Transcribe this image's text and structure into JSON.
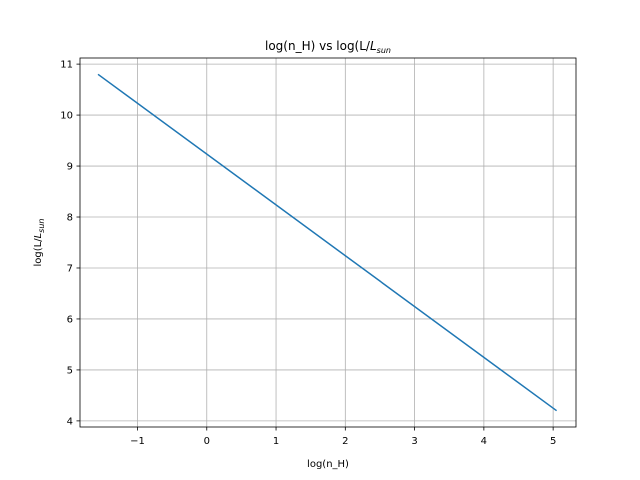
{
  "chart_data": {
    "type": "line",
    "title_main": "log(n_H) vs log(L/",
    "title_italic": "L",
    "title_sub": "sun",
    "xlabel": "log(n_H)",
    "ylabel_main": "log(L/",
    "ylabel_italic": "L",
    "ylabel_sub": "sun",
    "xlim": [
      -1.83,
      5.33
    ],
    "ylim": [
      3.88,
      11.12
    ],
    "xticks": [
      -1,
      0,
      1,
      2,
      3,
      4,
      5
    ],
    "xtick_labels": [
      "−1",
      "0",
      "1",
      "2",
      "3",
      "4",
      "5"
    ],
    "yticks": [
      4,
      5,
      6,
      7,
      8,
      9,
      10,
      11
    ],
    "ytick_labels": [
      "4",
      "5",
      "6",
      "7",
      "8",
      "9",
      "10",
      "11"
    ],
    "grid": true,
    "series": [
      {
        "color": "#1f77b4",
        "x": [
          -1.57,
          5.05
        ],
        "y": [
          10.8,
          4.2
        ]
      }
    ]
  }
}
